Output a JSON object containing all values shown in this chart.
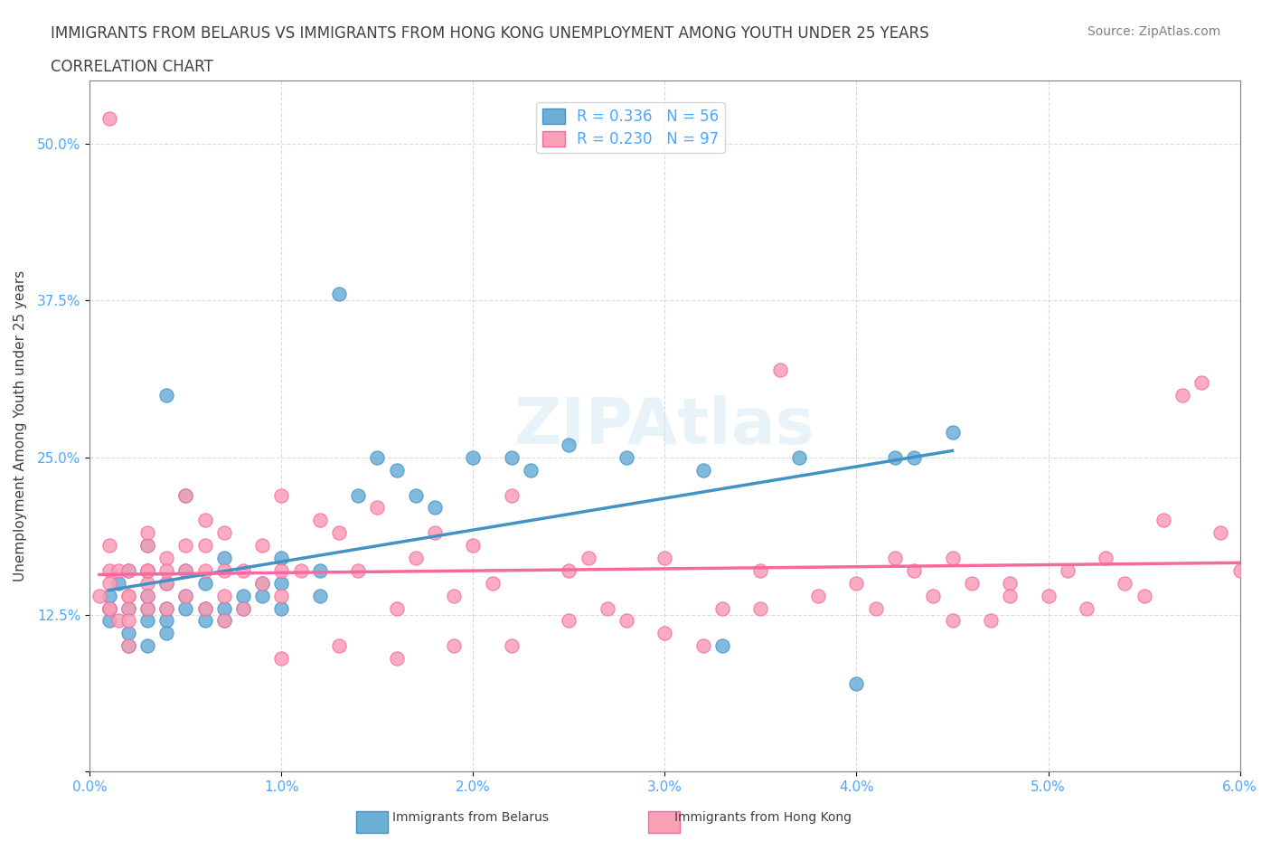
{
  "title_line1": "IMMIGRANTS FROM BELARUS VS IMMIGRANTS FROM HONG KONG UNEMPLOYMENT AMONG YOUTH UNDER 25 YEARS",
  "title_line2": "CORRELATION CHART",
  "source": "Source: ZipAtlas.com",
  "xlabel": "",
  "ylabel": "Unemployment Among Youth under 25 years",
  "watermark": "ZIPAtlas",
  "xlim": [
    0.0,
    0.06
  ],
  "ylim": [
    0.0,
    0.55
  ],
  "xticks": [
    0.0,
    0.01,
    0.02,
    0.03,
    0.04,
    0.05,
    0.06
  ],
  "xticklabels": [
    "0.0%",
    "1.0%",
    "2.0%",
    "3.0%",
    "4.0%",
    "5.0%",
    "6.0%"
  ],
  "yticks": [
    0.0,
    0.125,
    0.25,
    0.375,
    0.5
  ],
  "yticklabels": [
    "",
    "12.5%",
    "25.0%",
    "37.5%",
    "50.0%"
  ],
  "belarus_color": "#6baed6",
  "hk_color": "#fa9fb5",
  "belarus_edge": "#4292c6",
  "hk_edge": "#f768a1",
  "belarus_line_color": "#4292c6",
  "hk_line_color": "#f768a1",
  "trend_line_color_belarus": "#6baed6",
  "trend_line_color_hk": "#fa9fb5",
  "R_belarus": 0.336,
  "N_belarus": 56,
  "R_hk": 0.23,
  "N_hk": 97,
  "legend_label_belarus": "Immigrants from Belarus",
  "legend_label_hk": "Immigrants from Hong Kong",
  "belarus_scatter_x": [
    0.001,
    0.001,
    0.001,
    0.0015,
    0.002,
    0.002,
    0.002,
    0.002,
    0.003,
    0.003,
    0.003,
    0.003,
    0.003,
    0.003,
    0.004,
    0.004,
    0.004,
    0.004,
    0.004,
    0.005,
    0.005,
    0.005,
    0.005,
    0.006,
    0.006,
    0.006,
    0.007,
    0.007,
    0.007,
    0.008,
    0.008,
    0.009,
    0.009,
    0.01,
    0.01,
    0.01,
    0.012,
    0.012,
    0.013,
    0.014,
    0.015,
    0.016,
    0.017,
    0.018,
    0.02,
    0.022,
    0.023,
    0.025,
    0.028,
    0.032,
    0.033,
    0.037,
    0.04,
    0.042,
    0.043,
    0.045
  ],
  "belarus_scatter_y": [
    0.13,
    0.12,
    0.14,
    0.15,
    0.1,
    0.13,
    0.11,
    0.16,
    0.1,
    0.12,
    0.14,
    0.16,
    0.18,
    0.13,
    0.3,
    0.12,
    0.15,
    0.13,
    0.11,
    0.14,
    0.13,
    0.16,
    0.22,
    0.13,
    0.15,
    0.12,
    0.17,
    0.13,
    0.12,
    0.14,
    0.13,
    0.15,
    0.14,
    0.17,
    0.15,
    0.13,
    0.14,
    0.16,
    0.38,
    0.22,
    0.25,
    0.24,
    0.22,
    0.21,
    0.25,
    0.25,
    0.24,
    0.26,
    0.25,
    0.24,
    0.1,
    0.25,
    0.07,
    0.25,
    0.25,
    0.27
  ],
  "hk_scatter_x": [
    0.0005,
    0.001,
    0.001,
    0.001,
    0.001,
    0.001,
    0.001,
    0.0015,
    0.0015,
    0.002,
    0.002,
    0.002,
    0.002,
    0.002,
    0.002,
    0.003,
    0.003,
    0.003,
    0.003,
    0.003,
    0.003,
    0.003,
    0.004,
    0.004,
    0.004,
    0.004,
    0.005,
    0.005,
    0.005,
    0.005,
    0.006,
    0.006,
    0.006,
    0.006,
    0.007,
    0.007,
    0.007,
    0.008,
    0.008,
    0.009,
    0.009,
    0.01,
    0.01,
    0.01,
    0.011,
    0.012,
    0.013,
    0.014,
    0.015,
    0.016,
    0.017,
    0.018,
    0.019,
    0.02,
    0.021,
    0.022,
    0.025,
    0.026,
    0.027,
    0.028,
    0.03,
    0.032,
    0.033,
    0.035,
    0.036,
    0.038,
    0.04,
    0.041,
    0.042,
    0.043,
    0.044,
    0.045,
    0.046,
    0.047,
    0.048,
    0.05,
    0.051,
    0.052,
    0.053,
    0.054,
    0.055,
    0.056,
    0.057,
    0.058,
    0.059,
    0.06,
    0.045,
    0.048,
    0.035,
    0.03,
    0.025,
    0.022,
    0.019,
    0.016,
    0.013,
    0.01,
    0.007
  ],
  "hk_scatter_y": [
    0.14,
    0.16,
    0.15,
    0.13,
    0.13,
    0.18,
    0.52,
    0.12,
    0.16,
    0.14,
    0.13,
    0.16,
    0.12,
    0.14,
    0.1,
    0.15,
    0.16,
    0.13,
    0.18,
    0.14,
    0.19,
    0.16,
    0.17,
    0.15,
    0.13,
    0.16,
    0.16,
    0.18,
    0.14,
    0.22,
    0.13,
    0.16,
    0.18,
    0.2,
    0.16,
    0.14,
    0.19,
    0.16,
    0.13,
    0.18,
    0.15,
    0.16,
    0.22,
    0.14,
    0.16,
    0.2,
    0.19,
    0.16,
    0.21,
    0.13,
    0.17,
    0.19,
    0.14,
    0.18,
    0.15,
    0.22,
    0.16,
    0.17,
    0.13,
    0.12,
    0.17,
    0.1,
    0.13,
    0.16,
    0.32,
    0.14,
    0.15,
    0.13,
    0.17,
    0.16,
    0.14,
    0.17,
    0.15,
    0.12,
    0.15,
    0.14,
    0.16,
    0.13,
    0.17,
    0.15,
    0.14,
    0.2,
    0.3,
    0.31,
    0.19,
    0.16,
    0.12,
    0.14,
    0.13,
    0.11,
    0.12,
    0.1,
    0.1,
    0.09,
    0.1,
    0.09,
    0.12
  ],
  "grid_color": "#cccccc",
  "background_color": "#ffffff",
  "title_color": "#404040",
  "axis_color": "#808080",
  "tick_label_color": "#4da6ff"
}
